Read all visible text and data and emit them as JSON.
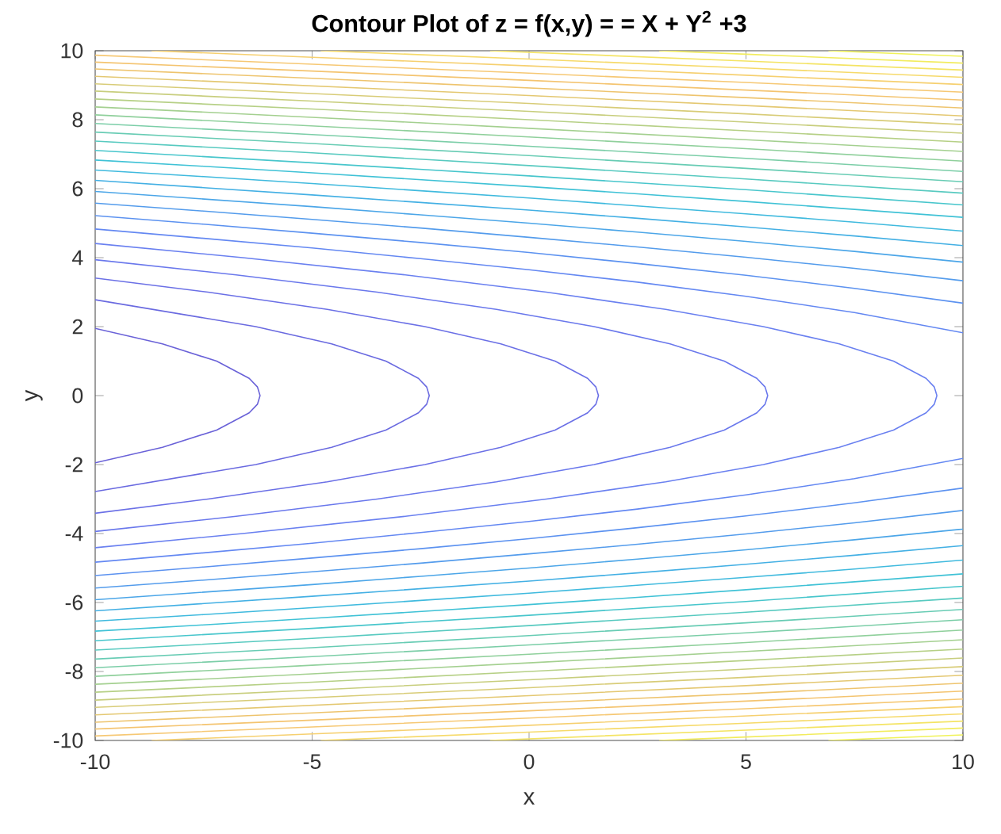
{
  "chart_data": {
    "type": "line",
    "title": "Contour Plot of z = f(x,y) =  = X + Y$^{2}$ +3",
    "xlabel": "x",
    "ylabel": "y",
    "xlim": [
      -10,
      10
    ],
    "ylim": [
      -10,
      10
    ],
    "xticks": [
      -10,
      -5,
      0,
      5,
      10
    ],
    "yticks": [
      -10,
      -8,
      -6,
      -4,
      -2,
      0,
      2,
      4,
      6,
      8,
      10
    ],
    "marker": "none",
    "line_style": "solid",
    "series": [
      {
        "color": "#6a62d8",
        "x": [
          -10,
          -8.45,
          -7.2,
          -6.45,
          -6.26,
          -6.2,
          -6.26,
          -6.45,
          -7.2,
          -8.45,
          -10
        ],
        "values": [
          -1.95,
          -1.5,
          -1,
          -0.5,
          -0.25,
          0,
          0.25,
          0.5,
          1,
          1.5,
          1.95
        ]
      },
      {
        "color": "#6a6ae0",
        "x": [
          -10,
          -6.3,
          -4.55,
          -3.3,
          -2.55,
          -2.36,
          -2.3,
          -2.36,
          -2.55,
          -3.3,
          -4.55,
          -6.3,
          -10
        ],
        "values": [
          -2.78,
          -2,
          -1.5,
          -1,
          -0.5,
          -0.25,
          0,
          0.25,
          0.5,
          1,
          1.5,
          2,
          2.78
        ]
      },
      {
        "color": "#6b70e6",
        "x": [
          -10,
          -7.4,
          -4.65,
          -2.4,
          -0.65,
          0.6,
          1.35,
          1.54,
          1.6,
          1.54,
          1.35,
          0.6,
          -0.65,
          -2.4,
          -4.65,
          -7.4,
          -10
        ],
        "values": [
          -3.41,
          -3,
          -2.5,
          -2,
          -1.5,
          -1,
          -0.5,
          -0.25,
          0,
          0.25,
          0.5,
          1,
          1.5,
          2,
          2.5,
          3,
          3.41
        ]
      },
      {
        "color": "#6a78ec",
        "x": [
          -10,
          -6.75,
          -3.5,
          -0.75,
          1.5,
          3.25,
          4.5,
          5.25,
          5.44,
          5.5,
          5.44,
          5.25,
          4.5,
          3.25,
          1.5,
          -0.75,
          -3.5,
          -6.75,
          -10
        ],
        "values": [
          -3.94,
          -3.5,
          -3,
          -2.5,
          -2,
          -1.5,
          -1,
          -0.5,
          -0.25,
          0,
          0.25,
          0.5,
          1,
          1.5,
          2,
          2.5,
          3,
          3.5,
          3.94
        ]
      },
      {
        "color": "#6a80f0",
        "x": [
          -10,
          -6.6,
          -2.85,
          0.4,
          3.15,
          5.4,
          7.15,
          8.4,
          9.15,
          9.34,
          9.4,
          9.34,
          9.15,
          8.4,
          7.15,
          5.4,
          3.15,
          0.4,
          -2.85,
          -6.6,
          -10
        ],
        "values": [
          -4.41,
          -4,
          -3.5,
          -3,
          -2.5,
          -2,
          -1.5,
          -1,
          -0.5,
          -0.25,
          0,
          0.25,
          0.5,
          1,
          1.5,
          2,
          2.5,
          3,
          3.5,
          4,
          4.41
        ]
      },
      {
        "color": "#6488f2",
        "x": [
          -10,
          -7.5,
          -5,
          -2.5,
          0,
          2.5,
          5,
          7.5,
          10
        ],
        "values": [
          4.83,
          4.56,
          4.28,
          3.97,
          3.65,
          3.29,
          2.88,
          2.41,
          1.82
        ]
      },
      {
        "color": "#6488f2",
        "x": [
          -10,
          -7.5,
          -5,
          -2.5,
          0,
          2.5,
          5,
          7.5,
          10
        ],
        "values": [
          -4.83,
          -4.56,
          -4.28,
          -3.97,
          -3.65,
          -3.29,
          -2.88,
          -2.41,
          -1.82
        ]
      },
      {
        "color": "#5c92f0",
        "x": [
          -10,
          -7.5,
          -5,
          -2.5,
          0,
          2.5,
          5,
          7.5,
          10
        ],
        "values": [
          5.22,
          4.97,
          4.71,
          4.44,
          4.15,
          3.83,
          3.49,
          3.11,
          2.68
        ]
      },
      {
        "color": "#5c92f0",
        "x": [
          -10,
          -7.5,
          -5,
          -2.5,
          0,
          2.5,
          5,
          7.5,
          10
        ],
        "values": [
          -5.22,
          -4.97,
          -4.71,
          -4.44,
          -4.15,
          -3.83,
          -3.49,
          -3.11,
          -2.68
        ]
      },
      {
        "color": "#549cec",
        "x": [
          -10,
          -7.5,
          -5,
          -2.5,
          0,
          2.5,
          5,
          7.5,
          10
        ],
        "values": [
          5.58,
          5.35,
          5.11,
          4.86,
          4.59,
          4.31,
          4.01,
          3.69,
          3.33
        ]
      },
      {
        "color": "#549cec",
        "x": [
          -10,
          -7.5,
          -5,
          -2.5,
          0,
          2.5,
          5,
          7.5,
          10
        ],
        "values": [
          -5.58,
          -5.35,
          -5.11,
          -4.86,
          -4.59,
          -4.31,
          -4.01,
          -3.69,
          -3.33
        ]
      },
      {
        "color": "#4ca6e8",
        "x": [
          -10,
          -7.5,
          -5,
          -2.5,
          0,
          2.5,
          5,
          7.5,
          10
        ],
        "values": [
          5.92,
          5.7,
          5.48,
          5.24,
          5.0,
          4.74,
          4.47,
          4.18,
          3.87
        ]
      },
      {
        "color": "#4ca6e8",
        "x": [
          -10,
          -7.5,
          -5,
          -2.5,
          0,
          2.5,
          5,
          7.5,
          10
        ],
        "values": [
          -5.92,
          -5.7,
          -5.48,
          -5.24,
          -5.0,
          -4.74,
          -4.47,
          -4.18,
          -3.87
        ]
      },
      {
        "color": "#44b0e4",
        "x": [
          -10,
          -7.5,
          -5,
          -2.5,
          0,
          2.5,
          5,
          7.5,
          10
        ],
        "values": [
          6.24,
          6.03,
          5.82,
          5.6,
          5.38,
          5.14,
          4.89,
          4.63,
          4.35
        ]
      },
      {
        "color": "#44b0e4",
        "x": [
          -10,
          -7.5,
          -5,
          -2.5,
          0,
          2.5,
          5,
          7.5,
          10
        ],
        "values": [
          -6.24,
          -6.03,
          -5.82,
          -5.6,
          -5.38,
          -5.14,
          -4.89,
          -4.63,
          -4.35
        ]
      },
      {
        "color": "#40bade",
        "x": [
          -10,
          -7.5,
          -5,
          -2.5,
          0,
          2.5,
          5,
          7.5,
          10
        ],
        "values": [
          6.54,
          6.35,
          6.15,
          5.94,
          5.73,
          5.5,
          5.27,
          5.03,
          4.77
        ]
      },
      {
        "color": "#40bade",
        "x": [
          -10,
          -7.5,
          -5,
          -2.5,
          0,
          2.5,
          5,
          7.5,
          10
        ],
        "values": [
          -6.54,
          -6.35,
          -6.15,
          -5.94,
          -5.73,
          -5.5,
          -5.27,
          -5.03,
          -4.77
        ]
      },
      {
        "color": "#40c2d6",
        "x": [
          -10,
          -7.5,
          -5,
          -2.5,
          0,
          2.5,
          5,
          7.5,
          10
        ],
        "values": [
          6.83,
          6.65,
          6.46,
          6.26,
          6.06,
          5.85,
          5.63,
          5.4,
          5.17
        ]
      },
      {
        "color": "#40c2d6",
        "x": [
          -10,
          -7.5,
          -5,
          -2.5,
          0,
          2.5,
          5,
          7.5,
          10
        ],
        "values": [
          -6.83,
          -6.65,
          -6.46,
          -6.26,
          -6.06,
          -5.85,
          -5.63,
          -5.4,
          -5.17
        ]
      },
      {
        "color": "#48c6cc",
        "x": [
          -10,
          -5,
          0,
          5,
          10
        ],
        "values": [
          7.11,
          6.75,
          6.37,
          5.97,
          5.53
        ]
      },
      {
        "color": "#48c6cc",
        "x": [
          -10,
          -5,
          0,
          5,
          10
        ],
        "values": [
          -7.11,
          -6.75,
          -6.37,
          -5.97,
          -5.53
        ]
      },
      {
        "color": "#58cac0",
        "x": [
          -10,
          -5,
          0,
          5,
          10
        ],
        "values": [
          7.38,
          7.04,
          6.67,
          6.28,
          5.87
        ]
      },
      {
        "color": "#58cac0",
        "x": [
          -10,
          -5,
          0,
          5,
          10
        ],
        "values": [
          -7.38,
          -7.04,
          -6.67,
          -6.28,
          -5.87
        ]
      },
      {
        "color": "#68ccb4",
        "x": [
          -10,
          -5,
          0,
          5,
          10
        ],
        "values": [
          7.64,
          7.31,
          6.96,
          6.59,
          6.2
        ]
      },
      {
        "color": "#68ccb4",
        "x": [
          -10,
          -5,
          0,
          5,
          10
        ],
        "values": [
          -7.64,
          -7.31,
          -6.96,
          -6.59,
          -6.2
        ]
      },
      {
        "color": "#7ccea8",
        "x": [
          -10,
          -5,
          0,
          5,
          10
        ],
        "values": [
          7.89,
          7.57,
          7.23,
          6.88,
          6.5
        ]
      },
      {
        "color": "#7ccea8",
        "x": [
          -10,
          -5,
          0,
          5,
          10
        ],
        "values": [
          -7.89,
          -7.57,
          -7.23,
          -6.88,
          -6.5
        ]
      },
      {
        "color": "#90d09c",
        "x": [
          -10,
          -5,
          0,
          5,
          10
        ],
        "values": [
          8.14,
          7.82,
          7.5,
          7.16,
          6.8
        ]
      },
      {
        "color": "#90d09c",
        "x": [
          -10,
          -5,
          0,
          5,
          10
        ],
        "values": [
          -8.14,
          -7.82,
          -7.5,
          -7.16,
          -6.8
        ]
      },
      {
        "color": "#a4d090",
        "x": [
          -10,
          -5,
          0,
          5,
          10
        ],
        "values": [
          8.37,
          8.07,
          7.75,
          7.42,
          7.08
        ]
      },
      {
        "color": "#a4d090",
        "x": [
          -10,
          -5,
          0,
          5,
          10
        ],
        "values": [
          -8.37,
          -8.07,
          -7.75,
          -7.42,
          -7.08
        ]
      },
      {
        "color": "#b6d086",
        "x": [
          -10,
          -5,
          0,
          5,
          10
        ],
        "values": [
          8.6,
          8.31,
          8.0,
          7.68,
          7.35
        ]
      },
      {
        "color": "#b6d086",
        "x": [
          -10,
          -5,
          0,
          5,
          10
        ],
        "values": [
          -8.6,
          -8.31,
          -8.0,
          -7.68,
          -7.35
        ]
      },
      {
        "color": "#c8ce7e",
        "x": [
          -10,
          -5,
          0,
          5,
          10
        ],
        "values": [
          8.83,
          8.54,
          8.24,
          7.93,
          7.61
        ]
      },
      {
        "color": "#c8ce7e",
        "x": [
          -10,
          -5,
          0,
          5,
          10
        ],
        "values": [
          -8.83,
          -8.54,
          -8.24,
          -7.93,
          -7.61
        ]
      },
      {
        "color": "#d8cc78",
        "x": [
          -10,
          -5,
          0,
          5,
          10
        ],
        "values": [
          9.04,
          8.76,
          8.47,
          8.17,
          7.86
        ]
      },
      {
        "color": "#d8cc78",
        "x": [
          -10,
          -5,
          0,
          5,
          10
        ],
        "values": [
          -9.04,
          -8.76,
          -8.47,
          -8.17,
          -7.86
        ]
      },
      {
        "color": "#e4c872",
        "x": [
          -10,
          -5,
          0,
          5,
          10
        ],
        "values": [
          9.26,
          8.98,
          8.7,
          8.41,
          8.11
        ]
      },
      {
        "color": "#e4c872",
        "x": [
          -10,
          -5,
          0,
          5,
          10
        ],
        "values": [
          -9.26,
          -8.98,
          -8.7,
          -8.41,
          -8.11
        ]
      },
      {
        "color": "#eec46e",
        "x": [
          -10,
          -5,
          0,
          5,
          10
        ],
        "values": [
          9.47,
          9.2,
          8.92,
          8.64,
          8.34
        ]
      },
      {
        "color": "#eec46e",
        "x": [
          -10,
          -5,
          0,
          5,
          10
        ],
        "values": [
          -9.47,
          -9.2,
          -8.92,
          -8.64,
          -8.34
        ]
      },
      {
        "color": "#f4c470",
        "x": [
          -10,
          -5,
          0,
          5,
          10
        ],
        "values": [
          9.67,
          9.41,
          9.14,
          8.86,
          8.57
        ]
      },
      {
        "color": "#f4c470",
        "x": [
          -10,
          -5,
          0,
          5,
          10
        ],
        "values": [
          -9.67,
          -9.41,
          -9.14,
          -8.86,
          -8.57
        ]
      },
      {
        "color": "#f6c874",
        "x": [
          -10,
          -5,
          0,
          5,
          10
        ],
        "values": [
          9.87,
          9.61,
          9.35,
          9.08,
          8.8
        ]
      },
      {
        "color": "#f6c874",
        "x": [
          -10,
          -5,
          0,
          5,
          10
        ],
        "values": [
          -9.87,
          -9.61,
          -9.35,
          -9.08,
          -8.8
        ]
      },
      {
        "color": "#f6d070",
        "x": [
          -8.7,
          -5,
          0,
          5,
          10
        ],
        "values": [
          10,
          9.81,
          9.56,
          9.29,
          9.02
        ]
      },
      {
        "color": "#f6d070",
        "x": [
          -8.7,
          -5,
          0,
          5,
          10
        ],
        "values": [
          -10,
          -9.81,
          -9.56,
          -9.29,
          -9.02
        ]
      },
      {
        "color": "#f6da6a",
        "x": [
          -4.8,
          0,
          5,
          10
        ],
        "values": [
          10,
          9.76,
          9.5,
          9.23
        ]
      },
      {
        "color": "#f6da6a",
        "x": [
          -4.8,
          0,
          5,
          10
        ],
        "values": [
          -10,
          -9.76,
          -9.5,
          -9.23
        ]
      },
      {
        "color": "#f4e464",
        "x": [
          -0.9,
          5,
          10
        ],
        "values": [
          10,
          9.7,
          9.44
        ]
      },
      {
        "color": "#f4e464",
        "x": [
          -0.9,
          5,
          10
        ],
        "values": [
          -10,
          -9.7,
          -9.44
        ]
      },
      {
        "color": "#f2ec5e",
        "x": [
          3,
          5,
          10
        ],
        "values": [
          10,
          9.9,
          9.64
        ]
      },
      {
        "color": "#f2ec5e",
        "x": [
          3,
          5,
          10
        ],
        "values": [
          -10,
          -9.9,
          -9.64
        ]
      },
      {
        "color": "#f0f25a",
        "x": [
          6.9,
          10
        ],
        "values": [
          10,
          9.84
        ]
      },
      {
        "color": "#f0f25a",
        "x": [
          6.9,
          10
        ],
        "values": [
          -10,
          -9.84
        ]
      }
    ]
  }
}
